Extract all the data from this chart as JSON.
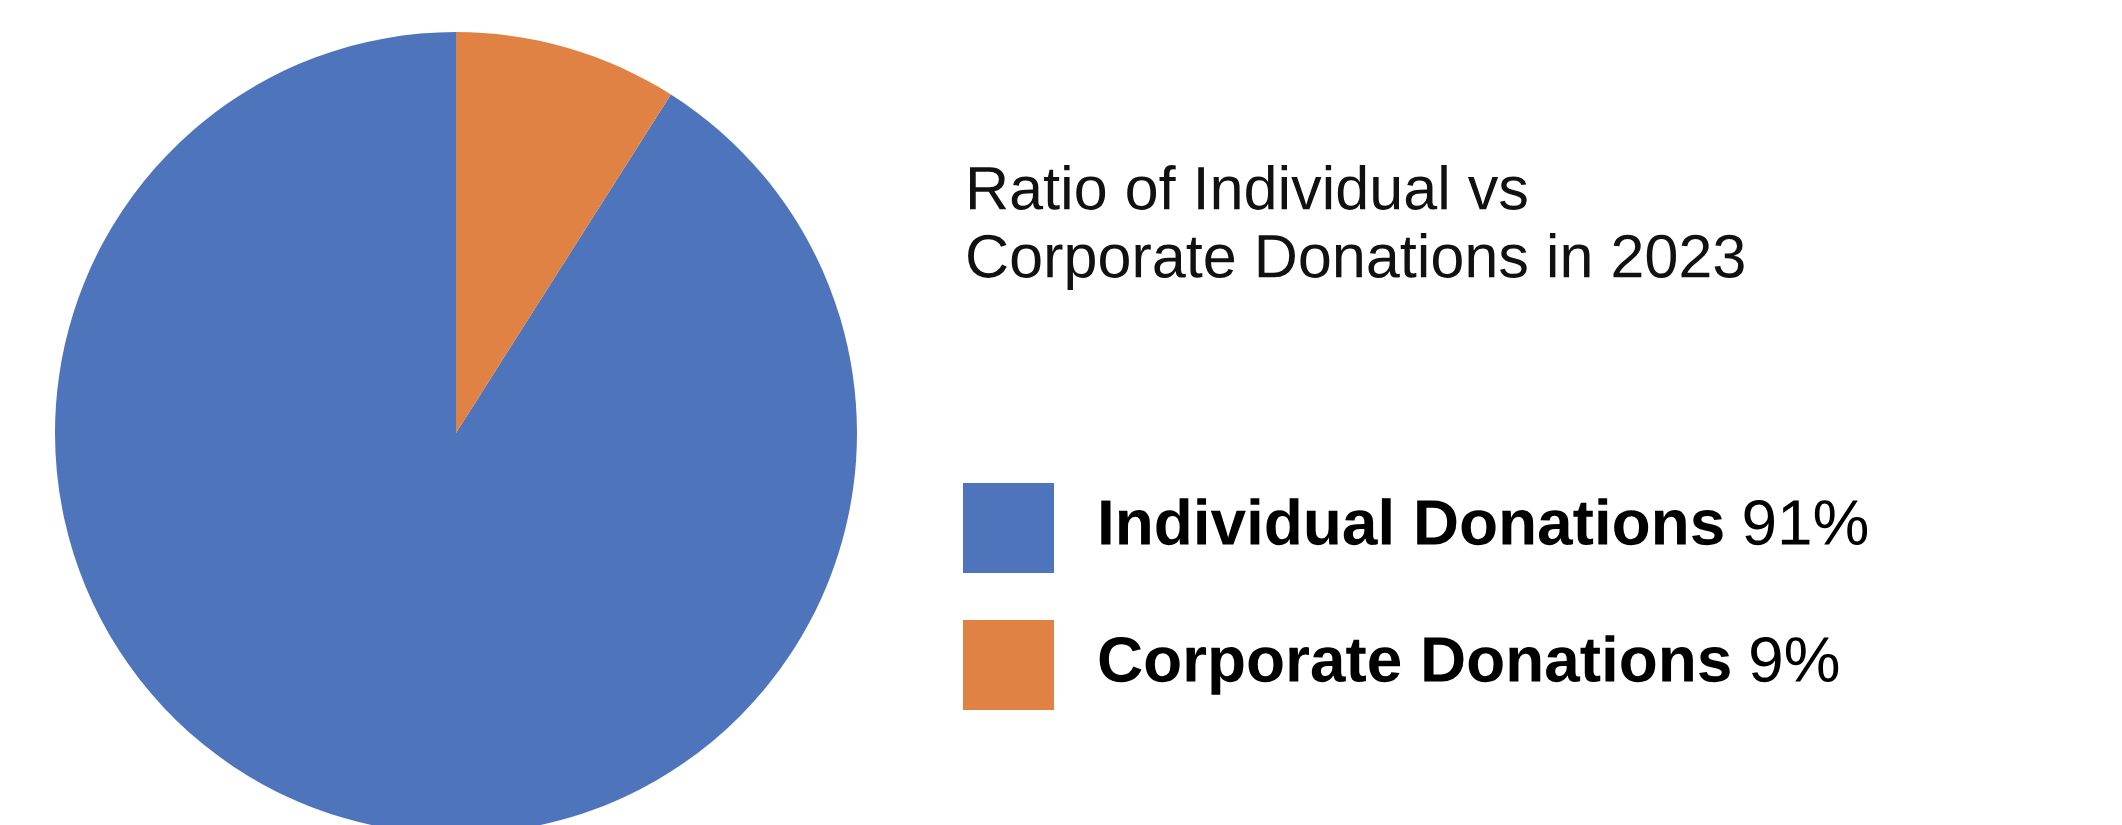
{
  "chart_data": {
    "type": "pie",
    "title": "Ratio of Individual vs\nCorporate Donations in 2023",
    "categories": [
      "Individual Donations",
      "Corporate Donations"
    ],
    "values": [
      91,
      9
    ],
    "colors": [
      "#4e74bc",
      "#df8244"
    ],
    "value_labels": [
      "91%",
      "9%"
    ],
    "legend": "right"
  }
}
